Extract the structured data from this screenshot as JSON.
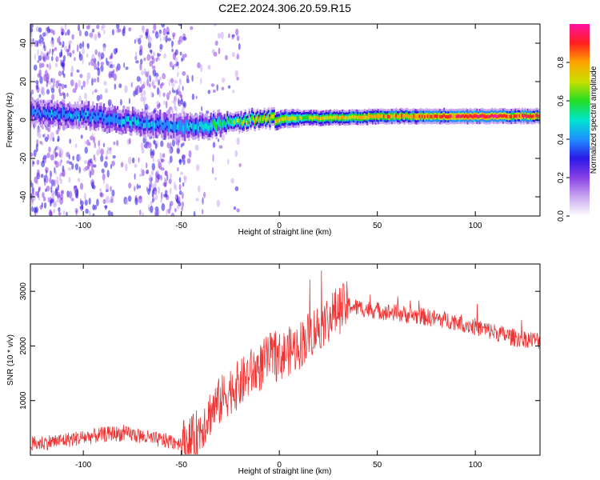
{
  "title": "C2E2.2024.306.20.59.R15",
  "colors": {
    "snr_line": "#ee3333",
    "axis": "#000000"
  },
  "chart_data": [
    {
      "type": "heatmap",
      "xlabel": "Height of straight line (km)",
      "ylabel": "Frequency (Hz)",
      "xlim": [
        -127,
        133
      ],
      "ylim": [
        -50,
        50
      ],
      "xticks": [
        "-100",
        "-50",
        "0",
        "50",
        "100"
      ],
      "xtick_values": [
        -100,
        -50,
        0,
        50,
        100
      ],
      "yticks": [
        "-40",
        "-20",
        "0",
        "20",
        "40"
      ],
      "ytick_values": [
        -40,
        -20,
        0,
        20,
        40
      ],
      "colorbar": {
        "label": "Normalized spectral amplitude",
        "ticks": [
          "0.0",
          "0.2",
          "0.4",
          "0.6",
          "0.8"
        ],
        "tick_values": [
          0.0,
          0.2,
          0.4,
          0.6,
          0.8
        ],
        "range": [
          0,
          1
        ],
        "colormap": [
          "#ffffff",
          "#c9a8f0",
          "#8a40e6",
          "#2a18e6",
          "#1e90ff",
          "#00e5d0",
          "#22dd22",
          "#c8e000",
          "#ffa500",
          "#ff2020",
          "#ff10a0"
        ]
      },
      "ridge": {
        "x": [
          -127,
          -110,
          -90,
          -75,
          -60,
          -50,
          -45,
          -40,
          -30,
          -20,
          -10,
          0,
          10,
          20,
          40,
          60,
          80,
          100,
          120,
          133
        ],
        "center_hz": [
          4,
          3,
          1.5,
          -1,
          -2.5,
          -3,
          -4,
          -3.5,
          -2,
          -0.5,
          0.5,
          0.5,
          1,
          1,
          1.5,
          2,
          2,
          2,
          2,
          2
        ],
        "amplitude": [
          0.35,
          0.4,
          0.4,
          0.45,
          0.4,
          0.45,
          0.45,
          0.5,
          0.55,
          0.6,
          0.7,
          0.75,
          0.65,
          0.7,
          0.75,
          0.8,
          0.85,
          0.95,
          0.85,
          0.85
        ]
      }
    },
    {
      "type": "line",
      "xlabel": "Height of straight line (km)",
      "ylabel": "SNR (10 * v/v)",
      "xlim": [
        -127,
        133
      ],
      "ylim": [
        0,
        3500
      ],
      "xticks": [
        "-100",
        "-50",
        "0",
        "50",
        "100"
      ],
      "xtick_values": [
        -100,
        -50,
        0,
        50,
        100
      ],
      "yticks": [
        "1000",
        "2000",
        "3000"
      ],
      "ytick_values": [
        1000,
        2000,
        3000
      ],
      "series": [
        {
          "color": "#ee3333",
          "x": [
            -127,
            -115,
            -105,
            -95,
            -85,
            -75,
            -65,
            -55,
            -50,
            -45,
            -40,
            -35,
            -30,
            -25,
            -20,
            -15,
            -10,
            -5,
            0,
            5,
            10,
            15,
            20,
            25,
            30,
            35,
            40,
            50,
            60,
            70,
            80,
            90,
            100,
            110,
            120,
            133
          ],
          "y": [
            200,
            250,
            300,
            350,
            400,
            380,
            300,
            250,
            230,
            250,
            500,
            800,
            1000,
            1200,
            1300,
            1500,
            1600,
            1800,
            1800,
            1900,
            2000,
            2200,
            2350,
            2500,
            2650,
            2750,
            2700,
            2650,
            2600,
            2550,
            2500,
            2450,
            2350,
            2250,
            2150,
            2100
          ]
        }
      ]
    }
  ]
}
